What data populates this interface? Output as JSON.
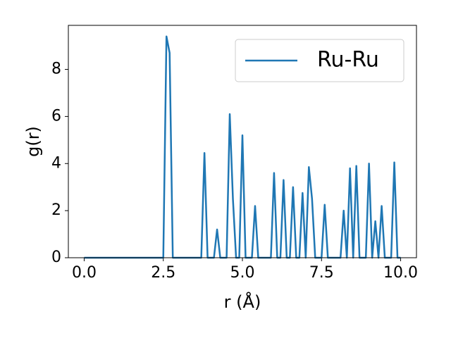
{
  "chart_data": {
    "type": "line",
    "xlabel": "r (Å)",
    "ylabel": "g(r)",
    "x": [
      0,
      0.1,
      0.2,
      0.3,
      0.4,
      0.5,
      0.6,
      0.7,
      0.8,
      0.9,
      1.0,
      1.1,
      1.2,
      1.3,
      1.4,
      1.5,
      1.6,
      1.7,
      1.8,
      1.9,
      2.0,
      2.1,
      2.2,
      2.3,
      2.4,
      2.5,
      2.6,
      2.7,
      2.8,
      2.9,
      3.0,
      3.1,
      3.2,
      3.3,
      3.4,
      3.5,
      3.6,
      3.7,
      3.8,
      3.9,
      4.0,
      4.1,
      4.2,
      4.3,
      4.4,
      4.5,
      4.6,
      4.7,
      4.8,
      4.9,
      5.0,
      5.1,
      5.2,
      5.3,
      5.4,
      5.5,
      5.6,
      5.7,
      5.8,
      5.9,
      6.0,
      6.1,
      6.2,
      6.3,
      6.4,
      6.5,
      6.6,
      6.7,
      6.8,
      6.9,
      7.0,
      7.1,
      7.2,
      7.3,
      7.4,
      7.5,
      7.6,
      7.7,
      7.8,
      7.9,
      8.0,
      8.1,
      8.2,
      8.3,
      8.4,
      8.5,
      8.6,
      8.7,
      8.8,
      8.9,
      9.0,
      9.1,
      9.2,
      9.3,
      9.4,
      9.5,
      9.6,
      9.7,
      9.8,
      9.9,
      10.0
    ],
    "series": [
      {
        "name": "Ru-Ru",
        "color": "#1f77b4",
        "values": [
          0,
          0,
          0,
          0,
          0,
          0,
          0,
          0,
          0,
          0,
          0,
          0,
          0,
          0,
          0,
          0,
          0,
          0,
          0,
          0,
          0,
          0,
          0,
          0,
          0,
          0,
          9.4,
          8.7,
          0,
          0,
          0,
          0,
          0,
          0,
          0,
          0,
          0,
          0,
          4.45,
          0,
          0,
          0,
          1.2,
          0,
          0,
          0,
          6.1,
          2.5,
          0,
          0,
          5.2,
          0,
          0,
          0,
          2.2,
          0,
          0,
          0,
          0,
          0,
          3.6,
          0,
          0,
          3.3,
          0,
          0,
          3.0,
          0,
          0,
          2.75,
          0,
          3.85,
          2.5,
          0,
          0,
          0,
          2.25,
          0,
          0,
          0,
          0,
          0,
          2.0,
          0,
          3.8,
          0,
          3.9,
          0,
          0,
          0,
          4.0,
          0,
          1.55,
          0,
          2.2,
          0,
          0,
          0,
          4.05,
          0,
          0
        ]
      }
    ],
    "xlim": [
      -0.5,
      10.5
    ],
    "xticks": [
      {
        "value": 0,
        "label": "0.0"
      },
      {
        "value": 2.5,
        "label": "2.5"
      },
      {
        "value": 5,
        "label": "5.0"
      },
      {
        "value": 7.5,
        "label": "7.5"
      },
      {
        "value": 10,
        "label": "10.0"
      }
    ],
    "ylim": [
      0,
      9.87
    ],
    "yticks": [
      0,
      2,
      4,
      6,
      8
    ],
    "legend": "upper right"
  }
}
